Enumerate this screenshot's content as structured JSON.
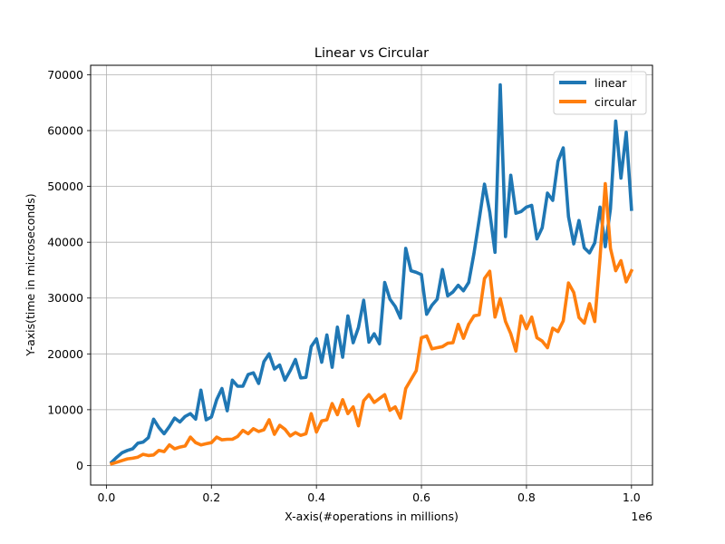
{
  "chart_data": {
    "type": "line",
    "title": "Linear vs Circular",
    "xlabel": "X-axis(#operations in millions)",
    "ylabel": "Y-axis(time in microseconds)",
    "x_offset_text": "1e6",
    "xlim": [
      -30000,
      1040000
    ],
    "ylim": [
      -3500,
      71700
    ],
    "xticks": [
      0,
      200000,
      400000,
      600000,
      800000,
      1000000
    ],
    "xtick_labels": [
      "0.0",
      "0.2",
      "0.4",
      "0.6",
      "0.8",
      "1.0"
    ],
    "yticks": [
      0,
      10000,
      20000,
      30000,
      40000,
      50000,
      60000,
      70000
    ],
    "ytick_labels": [
      "0",
      "10000",
      "20000",
      "30000",
      "40000",
      "50000",
      "60000",
      "70000"
    ],
    "grid": true,
    "legend_position": "top-right",
    "x": [
      10000,
      20000,
      30000,
      40000,
      50000,
      60000,
      70000,
      80000,
      90000,
      100000,
      110000,
      120000,
      130000,
      140000,
      150000,
      160000,
      170000,
      180000,
      190000,
      200000,
      210000,
      220000,
      230000,
      240000,
      250000,
      260000,
      270000,
      280000,
      290000,
      300000,
      310000,
      320000,
      330000,
      340000,
      350000,
      360000,
      370000,
      380000,
      390000,
      400000,
      410000,
      420000,
      430000,
      440000,
      450000,
      460000,
      470000,
      480000,
      490000,
      500000,
      510000,
      520000,
      530000,
      540000,
      550000,
      560000,
      570000,
      580000,
      590000,
      600000,
      610000,
      620000,
      630000,
      640000,
      650000,
      660000,
      670000,
      680000,
      690000,
      700000,
      710000,
      720000,
      730000,
      740000,
      750000,
      760000,
      770000,
      780000,
      790000,
      800000,
      810000,
      820000,
      830000,
      840000,
      850000,
      860000,
      870000,
      880000,
      890000,
      900000,
      910000,
      920000,
      930000,
      940000,
      950000,
      960000,
      970000,
      980000,
      990000,
      1000000
    ],
    "series": [
      {
        "name": "linear",
        "color": "#1f77b4",
        "values": [
          600,
          1500,
          2300,
          2700,
          3000,
          4000,
          4200,
          5000,
          8300,
          6800,
          5700,
          7000,
          8500,
          7800,
          8800,
          9300,
          8300,
          13500,
          8200,
          8700,
          11800,
          13800,
          9800,
          15300,
          14200,
          14200,
          16300,
          16600,
          14700,
          18600,
          20000,
          17300,
          18000,
          15300,
          17000,
          19000,
          15700,
          15800,
          21300,
          22700,
          18500,
          23400,
          17600,
          24800,
          19400,
          26800,
          22000,
          24700,
          29600,
          22100,
          23600,
          21800,
          32800,
          29800,
          28500,
          26400,
          38900,
          34900,
          34600,
          34200,
          27100,
          28700,
          29800,
          35100,
          30400,
          31100,
          32300,
          31300,
          32800,
          38000,
          44100,
          50400,
          45400,
          38200,
          68200,
          41000,
          52000,
          45200,
          45500,
          46300,
          46600,
          40600,
          42600,
          48800,
          47500,
          54500,
          56900,
          44600,
          39700,
          43900,
          39000,
          38100,
          39900,
          46300,
          39200,
          46000,
          61700,
          51500,
          59700,
          45900
        ]
      },
      {
        "name": "circular",
        "color": "#ff7f0e",
        "values": [
          300,
          600,
          900,
          1200,
          1300,
          1500,
          2000,
          1800,
          1900,
          2700,
          2500,
          3700,
          3000,
          3300,
          3500,
          5100,
          4100,
          3700,
          3900,
          4100,
          5100,
          4600,
          4700,
          4700,
          5200,
          6300,
          5700,
          6600,
          6100,
          6400,
          8200,
          5600,
          7200,
          6500,
          5300,
          5900,
          5400,
          5700,
          9300,
          6000,
          8000,
          8200,
          11100,
          9100,
          11800,
          9300,
          10500,
          7100,
          11600,
          12700,
          11300,
          12000,
          12700,
          9900,
          10500,
          8500,
          13800,
          15400,
          17000,
          22900,
          23200,
          20900,
          21100,
          21300,
          21900,
          22000,
          25300,
          22800,
          25300,
          26800,
          27000,
          33500,
          34800,
          26600,
          29900,
          25800,
          23600,
          20500,
          26800,
          24500,
          26600,
          22900,
          22300,
          21100,
          24600,
          24000,
          25900,
          32700,
          31000,
          26500,
          25500,
          29000,
          25800,
          37200,
          50500,
          38900,
          34900,
          36700,
          32900,
          34900
        ]
      }
    ]
  }
}
